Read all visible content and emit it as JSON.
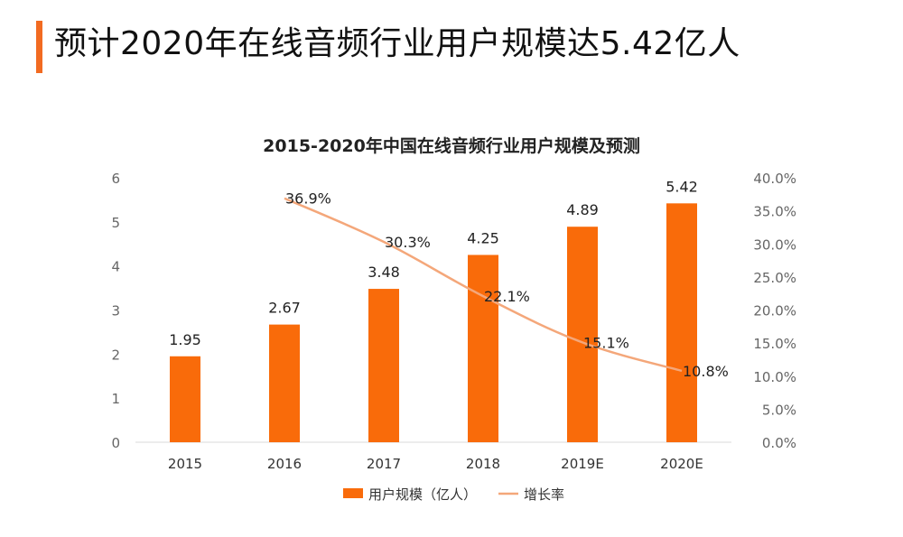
{
  "header": {
    "title": "预计2020年在线音频行业用户规模达5.42亿人",
    "accent_color": "#f26b21"
  },
  "chart_data": {
    "type": "bar",
    "title": "2015-2020年中国在线音频行业用户规模及预测",
    "categories": [
      "2015",
      "2016",
      "2017",
      "2018",
      "2019E",
      "2020E"
    ],
    "series": [
      {
        "name": "用户规模（亿人）",
        "type": "bar",
        "axis": "left",
        "color": "#f96b0a",
        "values": [
          1.95,
          2.67,
          3.48,
          4.25,
          4.89,
          5.42
        ],
        "labels": [
          "1.95",
          "2.67",
          "3.48",
          "4.25",
          "4.89",
          "5.42"
        ]
      },
      {
        "name": "增长率",
        "type": "line",
        "axis": "right",
        "color": "#f4a77a",
        "values": [
          null,
          36.9,
          30.3,
          22.1,
          15.1,
          10.8
        ],
        "labels": [
          "",
          "36.9%",
          "30.3%",
          "22.1%",
          "15.1%",
          "10.8%"
        ]
      }
    ],
    "y_left": {
      "range": [
        0,
        6
      ],
      "ticks": [
        "0",
        "1",
        "2",
        "3",
        "4",
        "5",
        "6"
      ]
    },
    "y_right": {
      "range": [
        0,
        40
      ],
      "ticks": [
        "0.0%",
        "5.0%",
        "10.0%",
        "15.0%",
        "20.0%",
        "25.0%",
        "30.0%",
        "35.0%",
        "40.0%"
      ]
    },
    "grid": false,
    "legend_position": "bottom"
  }
}
